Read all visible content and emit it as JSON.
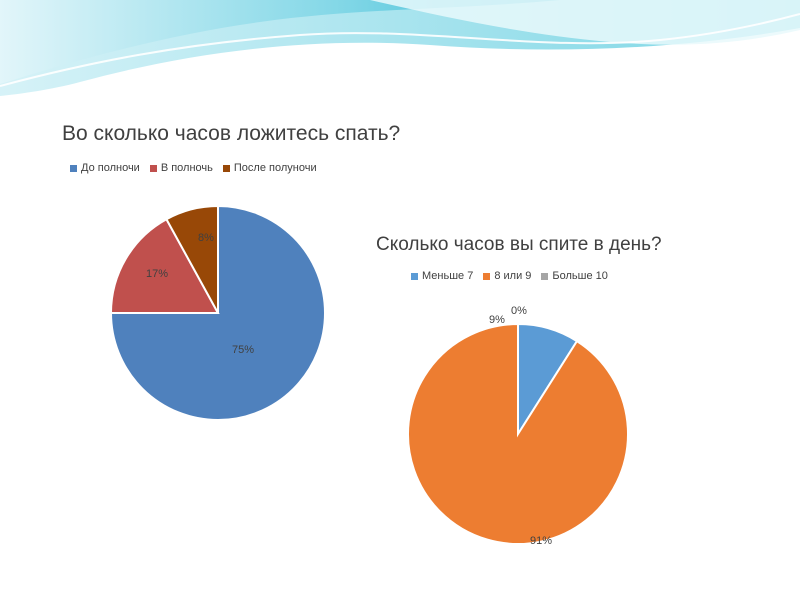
{
  "colors": {
    "accent_teal": "#4fc8dc",
    "header_light": "#c9eef5"
  },
  "chart_data": [
    {
      "type": "pie",
      "title": "Во сколько часов ложитесь спать?",
      "categories": [
        "До полночи",
        "В полночь",
        "После полуночи"
      ],
      "values": [
        75,
        17,
        8
      ],
      "data_labels": [
        "75%",
        "17%",
        "8%"
      ],
      "colors": [
        "#4f81bd",
        "#c0504d",
        "#984807"
      ],
      "legend_position": "top"
    },
    {
      "type": "pie",
      "title": "Сколько часов вы спите в день?",
      "categories": [
        "Меньше 7",
        "8 или 9",
        "Больше 10"
      ],
      "values": [
        9,
        91,
        0
      ],
      "data_labels": [
        "9%",
        "91%",
        "0%"
      ],
      "colors": [
        "#5b9bd5",
        "#ed7d31",
        "#a5a5a5"
      ],
      "legend_position": "top"
    }
  ]
}
